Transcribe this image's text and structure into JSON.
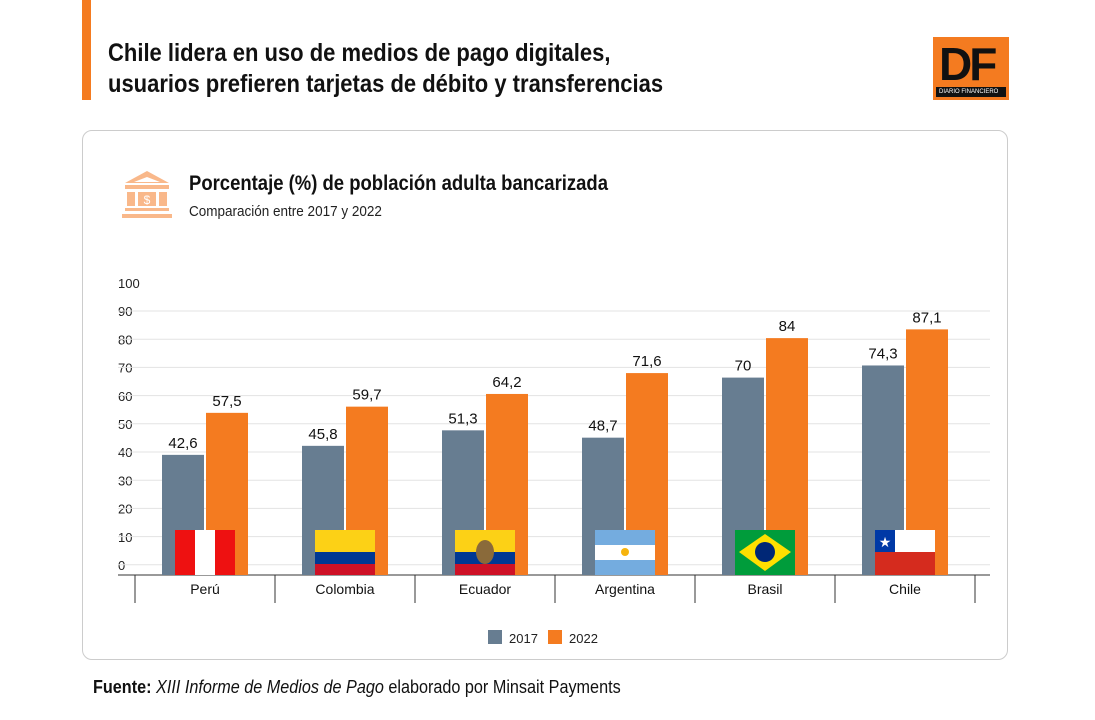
{
  "header": {
    "title_line1": "Chile lidera en uso de medios de pago digitales,",
    "title_line2": "usuarios prefieren tarjetas de débito y transferencias",
    "logo_text": "DF",
    "logo_sub": "DIARIO FINANCIERO"
  },
  "chart_header": {
    "icon": "bank-icon",
    "title": "Porcentaje (%) de población adulta bancarizada",
    "subtitle": "Comparación entre 2017 y 2022"
  },
  "source": {
    "label": "Fuente:",
    "italic": "XIII Informe de Medios de Pago",
    "rest": " elaborado por Minsait Payments"
  },
  "chart_data": {
    "type": "bar",
    "categories": [
      "Perú",
      "Colombia",
      "Ecuador",
      "Argentina",
      "Brasil",
      "Chile"
    ],
    "series": [
      {
        "name": "2017",
        "color": "#677d91",
        "values": [
          42.6,
          45.8,
          51.3,
          48.7,
          70,
          74.3
        ],
        "labels": [
          "42,6",
          "45,8",
          "51,3",
          "48,7",
          "70",
          "74,3"
        ]
      },
      {
        "name": "2022",
        "color": "#f47b20",
        "values": [
          57.5,
          59.7,
          64.2,
          71.6,
          84,
          87.1
        ],
        "labels": [
          "57,5",
          "59,7",
          "64,2",
          "71,6",
          "84",
          "87,1"
        ]
      }
    ],
    "ylim": [
      0,
      100
    ],
    "yticks": [
      0,
      10,
      20,
      30,
      40,
      50,
      60,
      70,
      80,
      90,
      100
    ],
    "grid": true,
    "legend": "bottom-center",
    "flags": [
      "peru-flag",
      "colombia-flag",
      "ecuador-flag",
      "argentina-flag",
      "brazil-flag",
      "chile-flag"
    ]
  }
}
